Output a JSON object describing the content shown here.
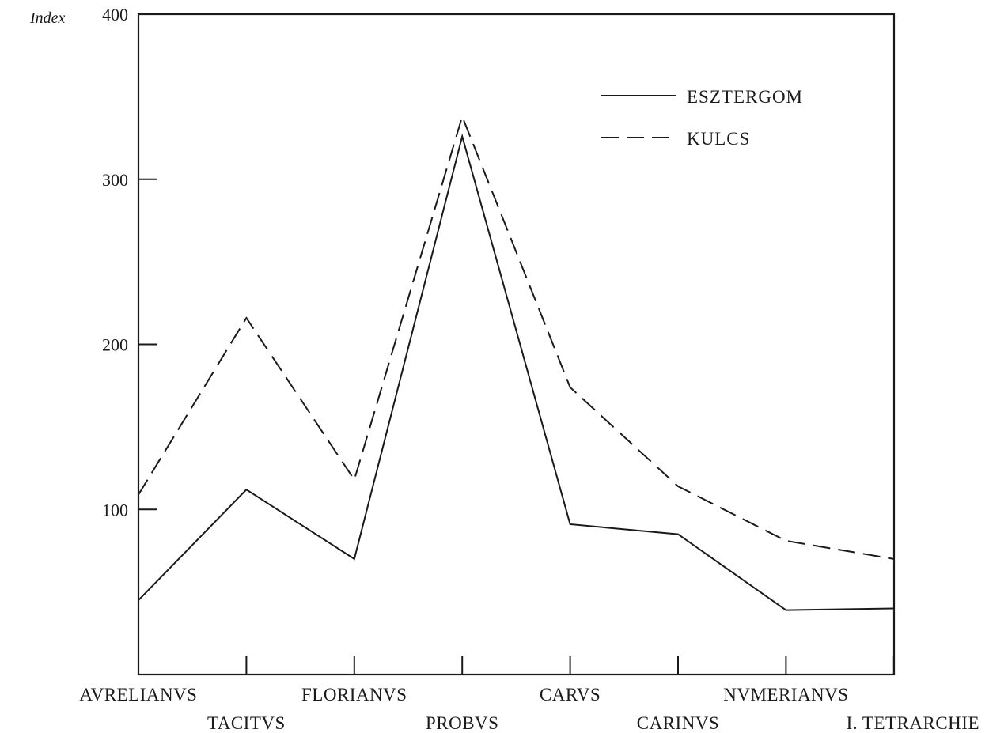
{
  "chart_data": {
    "type": "line",
    "title": "",
    "ylabel": "Index",
    "xlabel": "",
    "ylim": [
      0,
      400
    ],
    "yticks": [
      100,
      200,
      300,
      400
    ],
    "grid": false,
    "legend_position": "top-right",
    "categories": [
      "AVRELIANVS",
      "TACITVS",
      "FLORIANVS",
      "PROBVS",
      "CARVS",
      "CARINVS",
      "NVMERIANVS",
      "I. TETRARCHIE"
    ],
    "series": [
      {
        "name": "ESZTERGOM",
        "style": "solid",
        "color": "#1a1a1a",
        "values": [
          45,
          112,
          70,
          326,
          91,
          85,
          39,
          40
        ]
      },
      {
        "name": "KULCS",
        "style": "dashed",
        "color": "#1a1a1a",
        "values": [
          109,
          216,
          118,
          338,
          174,
          114,
          81,
          70
        ]
      }
    ]
  }
}
